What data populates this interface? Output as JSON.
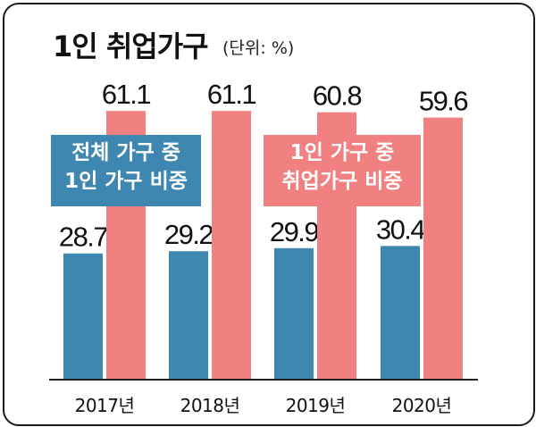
{
  "title": "1인 취업가구",
  "unit": "(단위: %)",
  "colors": {
    "series_1": "#3e87b0",
    "series_2": "#f08180",
    "axis": "#222222"
  },
  "chart_data": {
    "type": "bar",
    "categories": [
      "2017년",
      "2018년",
      "2019년",
      "2020년"
    ],
    "series": [
      {
        "name": "전체 가구 중 1인 가구 비중",
        "name_lines": [
          "전체 가구 중",
          "1인 가구 비중"
        ],
        "values": [
          28.7,
          29.2,
          29.9,
          30.4
        ],
        "labels": [
          "28.7",
          "29.2",
          "29.9",
          "30.4"
        ]
      },
      {
        "name": "1인 가구 중 취업가구 비중",
        "name_lines": [
          "1인 가구 중",
          "취업가구 비중"
        ],
        "values": [
          61.1,
          61.1,
          60.8,
          59.6
        ],
        "labels": [
          "61.1",
          "61.1",
          "60.8",
          "59.6"
        ]
      }
    ],
    "title": "1인 취업가구",
    "xlabel": "",
    "ylabel": "",
    "ylim": [
      0,
      65
    ],
    "grid": false,
    "legend": "inside-top"
  }
}
